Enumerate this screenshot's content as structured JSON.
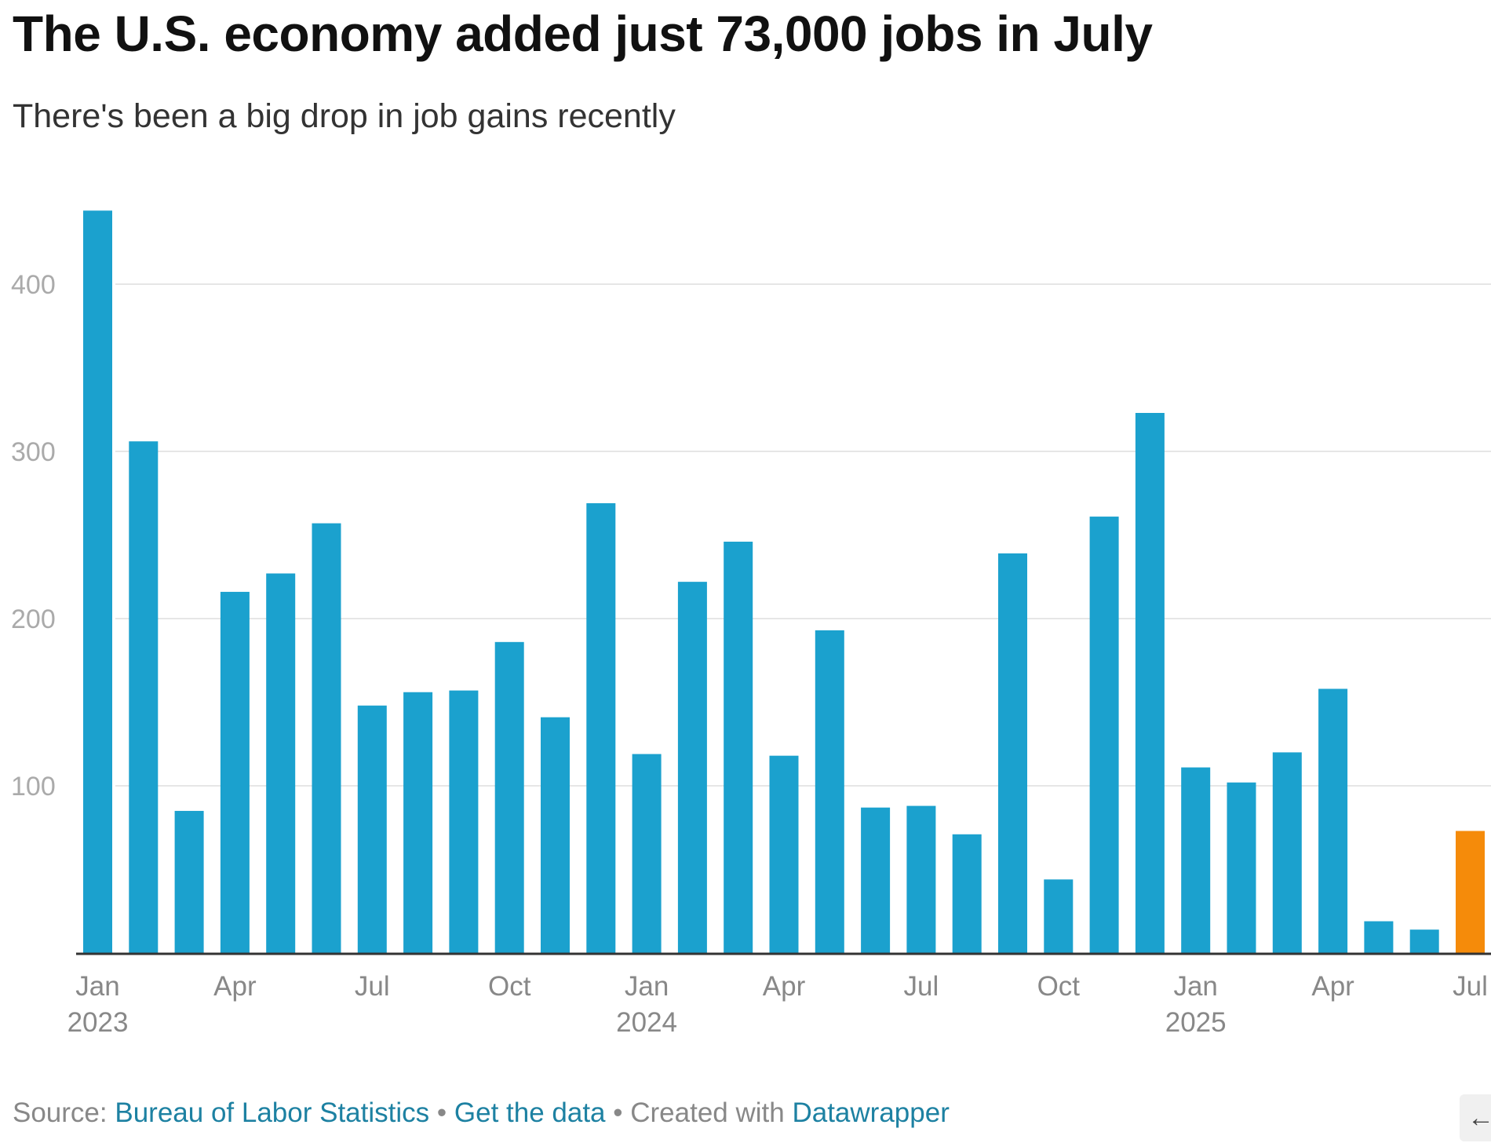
{
  "header": {
    "title": "The U.S. economy added just 73,000 jobs in July",
    "subtitle": "There's been a big drop in job gains recently"
  },
  "footer": {
    "source_prefix": "Source:",
    "source_link": "Bureau of Labor Statistics",
    "separator": "•",
    "data_link": "Get the data",
    "created_prefix": "Created with",
    "tool_link": "Datawrapper",
    "share_icon": "←"
  },
  "colors": {
    "bar": "#1ba1ce",
    "highlight": "#f58b0a",
    "grid": "#e6e6e6",
    "axis": "#333333",
    "tick_text": "#888888",
    "y_tick_text": "#aaaaaa"
  },
  "chart_data": {
    "type": "bar",
    "title": "The U.S. economy added just 73,000 jobs in July",
    "subtitle": "There's been a big drop in job gains recently",
    "xlabel": "",
    "ylabel": "",
    "unit": "thousands of jobs",
    "ylim": [
      0,
      440
    ],
    "yticks": [
      100,
      200,
      300,
      400
    ],
    "grid": true,
    "categories": [
      "Jan 2023",
      "Feb 2023",
      "Mar 2023",
      "Apr 2023",
      "May 2023",
      "Jun 2023",
      "Jul 2023",
      "Aug 2023",
      "Sep 2023",
      "Oct 2023",
      "Nov 2023",
      "Dec 2023",
      "Jan 2024",
      "Feb 2024",
      "Mar 2024",
      "Apr 2024",
      "May 2024",
      "Jun 2024",
      "Jul 2024",
      "Aug 2024",
      "Sep 2024",
      "Oct 2024",
      "Nov 2024",
      "Dec 2024",
      "Jan 2025",
      "Feb 2025",
      "Mar 2025",
      "Apr 2025",
      "May 2025",
      "Jun 2025",
      "Jul 2025"
    ],
    "values": [
      444,
      306,
      85,
      216,
      227,
      257,
      148,
      156,
      157,
      186,
      141,
      269,
      119,
      222,
      246,
      118,
      193,
      87,
      88,
      71,
      239,
      44,
      261,
      323,
      111,
      102,
      120,
      158,
      19,
      14,
      73
    ],
    "highlight_index": 30,
    "xtick_labels": [
      {
        "index": 0,
        "month": "Jan",
        "year": "2023"
      },
      {
        "index": 3,
        "month": "Apr",
        "year": ""
      },
      {
        "index": 6,
        "month": "Jul",
        "year": ""
      },
      {
        "index": 9,
        "month": "Oct",
        "year": ""
      },
      {
        "index": 12,
        "month": "Jan",
        "year": "2024"
      },
      {
        "index": 15,
        "month": "Apr",
        "year": ""
      },
      {
        "index": 18,
        "month": "Jul",
        "year": ""
      },
      {
        "index": 21,
        "month": "Oct",
        "year": ""
      },
      {
        "index": 24,
        "month": "Jan",
        "year": "2025"
      },
      {
        "index": 27,
        "month": "Apr",
        "year": ""
      },
      {
        "index": 30,
        "month": "Jul",
        "year": ""
      }
    ]
  }
}
